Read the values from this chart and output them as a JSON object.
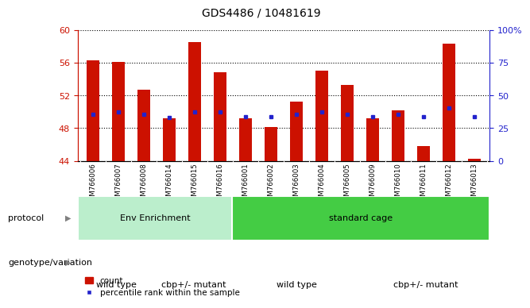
{
  "title": "GDS4486 / 10481619",
  "samples": [
    "GSM766006",
    "GSM766007",
    "GSM766008",
    "GSM766014",
    "GSM766015",
    "GSM766016",
    "GSM766001",
    "GSM766002",
    "GSM766003",
    "GSM766004",
    "GSM766005",
    "GSM766009",
    "GSM766010",
    "GSM766011",
    "GSM766012",
    "GSM766013"
  ],
  "bar_tops": [
    56.3,
    56.1,
    52.7,
    49.2,
    58.5,
    54.8,
    49.2,
    48.1,
    51.2,
    55.0,
    53.3,
    49.2,
    50.2,
    45.8,
    58.3,
    44.3
  ],
  "bar_base": 44.0,
  "blue_y": [
    49.7,
    50.0,
    49.7,
    49.3,
    50.0,
    50.0,
    49.4,
    49.4,
    49.7,
    50.0,
    49.7,
    49.4,
    49.7,
    49.4,
    50.5,
    49.4
  ],
  "ylim": [
    44,
    60
  ],
  "yticks_left": [
    44,
    48,
    52,
    56,
    60
  ],
  "yticks_right": [
    0,
    25,
    50,
    75,
    100
  ],
  "bar_color": "#cc1100",
  "dot_color": "#2222cc",
  "protocol_groups": [
    {
      "label": "Env Enrichment",
      "start": 0,
      "end": 6,
      "color": "#bbeecc"
    },
    {
      "label": "standard cage",
      "start": 6,
      "end": 16,
      "color": "#44cc44"
    }
  ],
  "genotype_groups": [
    {
      "label": "wild type",
      "start": 0,
      "end": 3,
      "color": "#eeaaee"
    },
    {
      "label": "cbp+/- mutant",
      "start": 3,
      "end": 6,
      "color": "#cc44cc"
    },
    {
      "label": "wild type",
      "start": 6,
      "end": 11,
      "color": "#eeaaee"
    },
    {
      "label": "cbp+/- mutant",
      "start": 11,
      "end": 16,
      "color": "#cc44cc"
    }
  ],
  "protocol_label": "protocol",
  "genotype_label": "genotype/variation",
  "legend_count": "count",
  "legend_pct": "percentile rank within the sample",
  "bg_color": "#ffffff",
  "xtick_bg": "#cccccc"
}
